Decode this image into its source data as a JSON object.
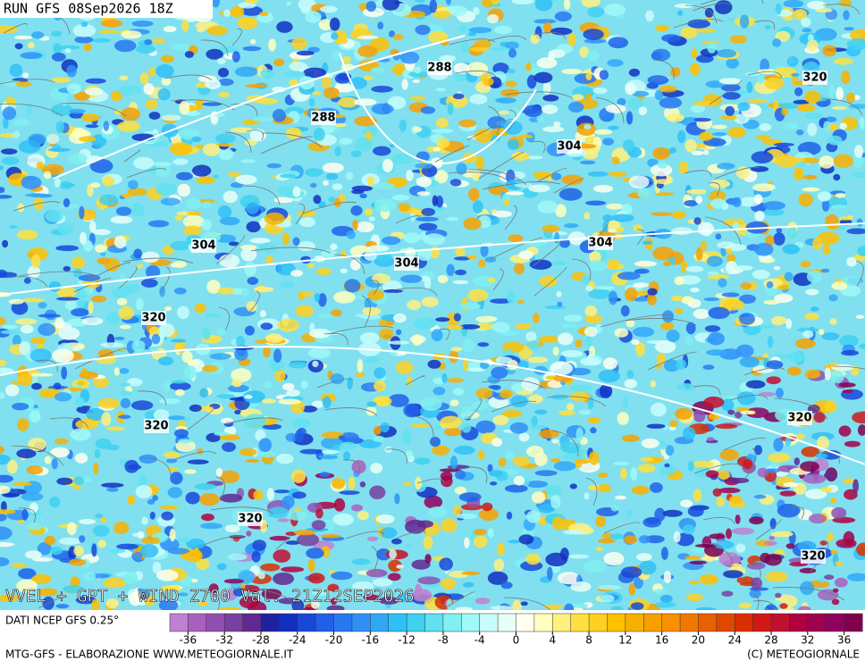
{
  "header": {
    "run_label": "RUN GFS 08Sep2026 18Z"
  },
  "map": {
    "title": "VVEL + GPT + WIND Z700 Val. 21Z12SEP2026",
    "contour_labels": [
      288,
      288,
      304,
      304,
      304,
      304,
      320,
      320,
      320,
      320,
      320,
      320
    ]
  },
  "legend": {
    "source": "DATI NCEP GFS 0.25°",
    "range": [
      -38,
      38
    ],
    "ticks": [
      -36,
      -32,
      -28,
      -24,
      -20,
      -16,
      -12,
      -8,
      -4,
      0,
      4,
      8,
      12,
      16,
      20,
      24,
      28,
      32,
      36
    ],
    "colors": [
      "#c080d0",
      "#a860c0",
      "#9050b0",
      "#7840a0",
      "#602890",
      "#2020a0",
      "#1030c0",
      "#1848d8",
      "#2060e8",
      "#2878f0",
      "#3090f8",
      "#30a8f8",
      "#30c0f8",
      "#40d0f0",
      "#60e0f0",
      "#80f0f0",
      "#a0f8f8",
      "#c8fcfc",
      "#e8fff8",
      "#fffff0",
      "#ffffc0",
      "#fff080",
      "#ffe040",
      "#ffd020",
      "#ffc000",
      "#f8b000",
      "#f8a000",
      "#f89000",
      "#f07800",
      "#e86000",
      "#e04800",
      "#d83000",
      "#d01818",
      "#c01030",
      "#b00040",
      "#a00050",
      "#900060",
      "#800050"
    ]
  },
  "footer": {
    "left": "MTG-GFS - ELABORAZIONE WWW.METEOGIORNALE.IT",
    "right": "(C) METEOGIORNALE"
  }
}
